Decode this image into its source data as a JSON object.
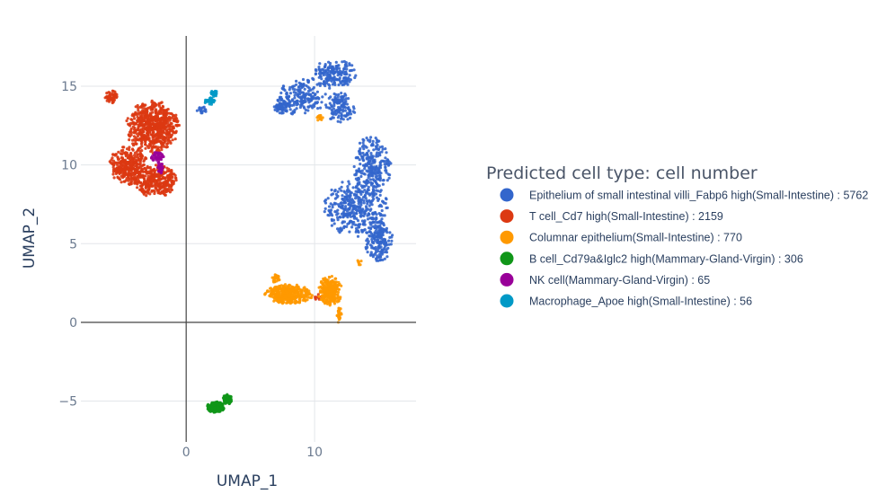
{
  "chart_data": {
    "type": "scatter",
    "xlabel": "UMAP_1",
    "ylabel": "UMAP_2",
    "xlim": [
      -8.2,
      17.9
    ],
    "ylim": [
      -7.6,
      18.2
    ],
    "x_ticks": [
      0,
      10
    ],
    "x_tick_labels": [
      "0",
      "10"
    ],
    "y_ticks": [
      -5,
      0,
      5,
      10,
      15
    ],
    "y_tick_labels": [
      "−5",
      "0",
      "5",
      "10",
      "15"
    ],
    "grid": true,
    "legend_position": "right",
    "legend_title": "Predicted cell type: cell number",
    "series": [
      {
        "name": "Epithelium of small intestinal villi_Fabp6 high(Small-Intestine) : 5762",
        "color": "#3366cc",
        "count": 5762,
        "regions": [
          {
            "cx": 11.5,
            "cy": 15.8,
            "rx": 1.7,
            "ry": 0.9,
            "w": 3
          },
          {
            "cx": 9.0,
            "cy": 14.3,
            "rx": 1.8,
            "ry": 1.1,
            "w": 3
          },
          {
            "cx": 7.4,
            "cy": 13.8,
            "rx": 0.7,
            "ry": 0.5,
            "w": 1
          },
          {
            "cx": 12.0,
            "cy": 13.6,
            "rx": 1.1,
            "ry": 1.0,
            "w": 2
          },
          {
            "cx": 14.5,
            "cy": 10.0,
            "rx": 1.4,
            "ry": 1.8,
            "w": 4
          },
          {
            "cx": 13.2,
            "cy": 7.3,
            "rx": 2.4,
            "ry": 1.8,
            "w": 6
          },
          {
            "cx": 15.0,
            "cy": 5.2,
            "rx": 1.1,
            "ry": 1.3,
            "w": 3
          },
          {
            "cx": 1.2,
            "cy": 13.5,
            "rx": 0.5,
            "ry": 0.2,
            "w": 0.3
          }
        ]
      },
      {
        "name": "T cell_Cd7 high(Small-Intestine) : 2159",
        "color": "#dc3912",
        "count": 2159,
        "regions": [
          {
            "cx": -2.6,
            "cy": 12.4,
            "rx": 2.0,
            "ry": 1.6,
            "w": 4
          },
          {
            "cx": -4.5,
            "cy": 10.0,
            "rx": 1.4,
            "ry": 1.2,
            "w": 2
          },
          {
            "cx": -2.4,
            "cy": 9.0,
            "rx": 1.7,
            "ry": 1.0,
            "w": 2
          },
          {
            "cx": -5.8,
            "cy": 14.3,
            "rx": 0.5,
            "ry": 0.4,
            "w": 0.3
          },
          {
            "cx": 10.2,
            "cy": 1.6,
            "rx": 0.3,
            "ry": 0.2,
            "w": 0.05
          }
        ]
      },
      {
        "name": "Columnar epithelium(Small-Intestine) : 770",
        "color": "#ff9900",
        "count": 770,
        "regions": [
          {
            "cx": 8.0,
            "cy": 1.8,
            "rx": 1.8,
            "ry": 0.6,
            "w": 3
          },
          {
            "cx": 11.2,
            "cy": 2.0,
            "rx": 0.9,
            "ry": 0.9,
            "w": 2
          },
          {
            "cx": 11.9,
            "cy": 0.5,
            "rx": 0.2,
            "ry": 0.5,
            "w": 0.2
          },
          {
            "cx": 7.0,
            "cy": 2.8,
            "rx": 0.3,
            "ry": 0.3,
            "w": 0.2
          },
          {
            "cx": 10.4,
            "cy": 13.0,
            "rx": 0.25,
            "ry": 0.2,
            "w": 0.1
          },
          {
            "cx": 13.5,
            "cy": 3.8,
            "rx": 0.2,
            "ry": 0.2,
            "w": 0.05
          }
        ]
      },
      {
        "name": "B cell_Cd79a&Iglc2 high(Mammary-Gland-Virgin) : 306",
        "color": "#109618",
        "count": 306,
        "regions": [
          {
            "cx": 2.3,
            "cy": -5.4,
            "rx": 0.65,
            "ry": 0.35,
            "w": 2
          },
          {
            "cx": 3.2,
            "cy": -4.9,
            "rx": 0.35,
            "ry": 0.3,
            "w": 1
          }
        ]
      },
      {
        "name": "NK cell(Mammary-Gland-Virgin) : 65",
        "color": "#990099",
        "count": 65,
        "regions": [
          {
            "cx": -2.2,
            "cy": 10.5,
            "rx": 0.5,
            "ry": 0.35,
            "w": 2
          },
          {
            "cx": -2.0,
            "cy": 9.8,
            "rx": 0.2,
            "ry": 0.4,
            "w": 1
          }
        ]
      },
      {
        "name": "Macrophage_Apoe high(Small-Intestine) : 56",
        "color": "#0099c6",
        "count": 56,
        "regions": [
          {
            "cx": 1.9,
            "cy": 14.1,
            "rx": 0.5,
            "ry": 0.25,
            "w": 1
          },
          {
            "cx": 2.2,
            "cy": 14.5,
            "rx": 0.3,
            "ry": 0.25,
            "w": 1
          }
        ]
      }
    ]
  }
}
